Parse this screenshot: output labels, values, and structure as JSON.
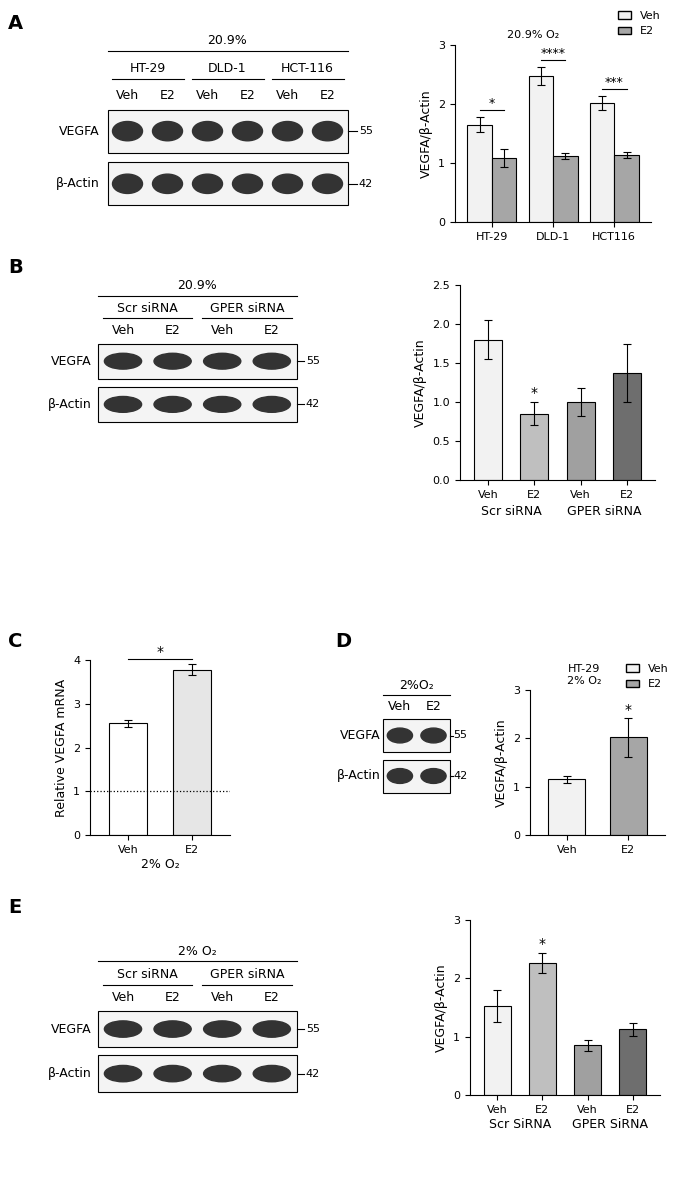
{
  "panel_labels": [
    "A",
    "B",
    "C",
    "D",
    "E"
  ],
  "blots": [
    {
      "header": "20.9%",
      "groups": [
        {
          "name": "HT-29",
          "lanes": [
            "Veh",
            "E2"
          ]
        },
        {
          "name": "DLD-1",
          "lanes": [
            "Veh",
            "E2"
          ]
        },
        {
          "name": "HCT-116",
          "lanes": [
            "Veh",
            "E2"
          ]
        }
      ],
      "rows": [
        {
          "name": "VEGFA",
          "mw": 55
        },
        {
          "name": "β-Actin",
          "mw": 42
        }
      ]
    },
    {
      "header": "20.9%",
      "groups": [
        {
          "name": "Scr siRNA",
          "lanes": [
            "Veh",
            "E2"
          ]
        },
        {
          "name": "GPER siRNA",
          "lanes": [
            "Veh",
            "E2"
          ]
        }
      ],
      "rows": [
        {
          "name": "VEGFA",
          "mw": 55
        },
        {
          "name": "β-Actin",
          "mw": 42
        }
      ]
    },
    {
      "header": "2%O₂",
      "lanes": [
        "Veh",
        "E2"
      ],
      "rows": [
        {
          "name": "VEGFA",
          "mw": 55
        },
        {
          "name": "β-Actin",
          "mw": 42
        }
      ]
    },
    {
      "header": "2% O₂",
      "groups": [
        {
          "name": "Scr siRNA",
          "lanes": [
            "Veh",
            "E2"
          ]
        },
        {
          "name": "GPER siRNA",
          "lanes": [
            "Veh",
            "E2"
          ]
        }
      ],
      "rows": [
        {
          "name": "VEGFA",
          "mw": 55
        },
        {
          "name": "β-Actin",
          "mw": 42
        }
      ]
    }
  ],
  "chart_data": [
    {
      "type": "bar",
      "categories": [
        "HT-29",
        "DLD-1",
        "HCT116"
      ],
      "series": [
        {
          "name": "Veh",
          "color": "#f2f2f2",
          "values": [
            1.65,
            2.48,
            2.02
          ],
          "errors": [
            0.13,
            0.15,
            0.12
          ]
        },
        {
          "name": "E2",
          "color": "#a6a6a6",
          "values": [
            1.08,
            1.12,
            1.13
          ],
          "errors": [
            0.15,
            0.05,
            0.05
          ]
        }
      ],
      "significance": [
        "*",
        "****",
        "***"
      ],
      "y_label": "VEGFA/β-Actin",
      "annotation": [
        "20.9% O₂"
      ],
      "legend": "upper right",
      "ylim": [
        0,
        3
      ],
      "yticks": [
        0,
        1,
        2,
        3
      ]
    },
    {
      "type": "bar",
      "categories": [
        "Veh",
        "E2",
        "Veh",
        "E2"
      ],
      "group_labels": [
        "Scr siRNA",
        "GPER siRNA"
      ],
      "values": [
        1.8,
        0.85,
        1.0,
        1.37
      ],
      "errors": [
        0.25,
        0.15,
        0.18,
        0.37
      ],
      "colors": [
        "#f2f2f2",
        "#bfbfbf",
        "#a0a0a0",
        "#6e6e6e"
      ],
      "significance": [
        null,
        "*",
        null,
        null
      ],
      "y_label": "VEGFA/β-Actin",
      "ylim": [
        0,
        2.5
      ],
      "yticks": [
        {
          "value": 0,
          "label": "0.0"
        },
        {
          "value": 0.5,
          "label": "0.5"
        },
        {
          "value": 1,
          "label": "1.0"
        },
        {
          "value": 1.5,
          "label": "1.5"
        },
        {
          "value": 2,
          "label": "2.0"
        },
        {
          "value": 2.5,
          "label": "2.5"
        }
      ]
    },
    {
      "type": "bar",
      "categories": [
        "Veh",
        "E2"
      ],
      "group_labels": [
        "2% O₂"
      ],
      "values": [
        2.55,
        3.78
      ],
      "errors": [
        0.07,
        0.12
      ],
      "colors": [
        "#ffffff",
        "#e6e6e6"
      ],
      "significance_bracket": "*",
      "reference_line": 1,
      "y_label": "Relative VEGFA mRNA",
      "ylim": [
        0,
        4
      ],
      "yticks": [
        0,
        1,
        2,
        3,
        4
      ]
    },
    {
      "type": "bar",
      "categories": [
        "Veh",
        "E2"
      ],
      "values": [
        1.15,
        2.02
      ],
      "errors": [
        0.08,
        0.4
      ],
      "colors": [
        "#f2f2f2",
        "#a6a6a6"
      ],
      "significance": [
        null,
        "*"
      ],
      "y_label": "VEGFA/β-Actin",
      "annotation": [
        "HT-29",
        "2% O₂"
      ],
      "legend": "upper right",
      "ylim": [
        0,
        3
      ],
      "yticks": [
        0,
        1,
        2,
        3
      ]
    },
    {
      "type": "bar",
      "categories": [
        "Veh",
        "E2",
        "Veh",
        "E2"
      ],
      "group_labels": [
        "Scr SiRNA",
        "GPER SiRNA"
      ],
      "values": [
        1.53,
        2.27,
        0.85,
        1.13
      ],
      "errors": [
        0.27,
        0.17,
        0.1,
        0.11
      ],
      "colors": [
        "#f2f2f2",
        "#bfbfbf",
        "#a0a0a0",
        "#6e6e6e"
      ],
      "significance": [
        null,
        "*",
        null,
        null
      ],
      "y_label": "VEGFA/β-Actin",
      "ylim": [
        0,
        3
      ],
      "yticks": [
        0,
        1,
        2,
        3
      ]
    }
  ]
}
